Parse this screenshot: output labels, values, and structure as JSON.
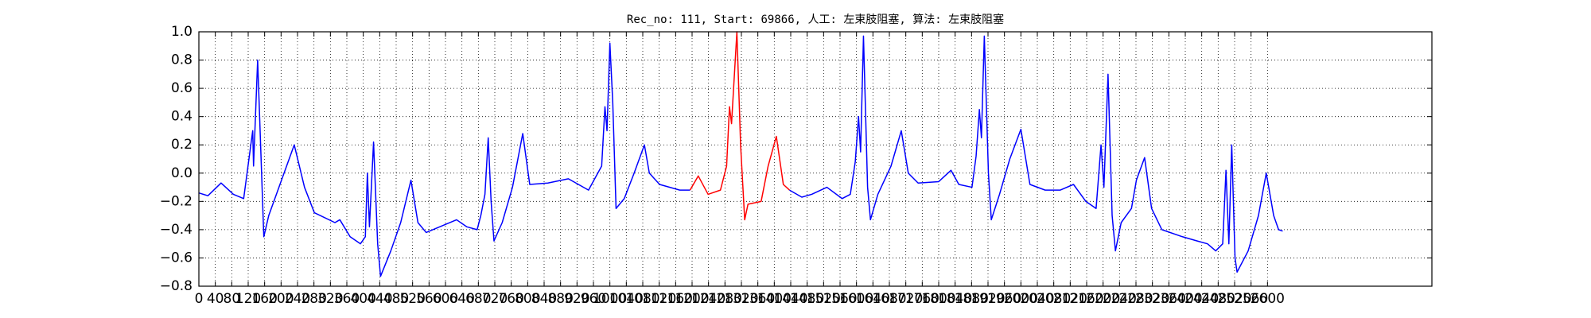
{
  "chart_data": {
    "type": "line",
    "title": "Rec_no: 111, Start: 69866, 人工: 左束肢阻塞, 算法: 左束肢阻塞",
    "xlim": [
      0,
      3000
    ],
    "xticks": [
      0,
      40,
      80,
      120,
      160,
      200,
      240,
      280,
      320,
      360,
      400,
      440,
      480,
      520,
      560,
      600,
      640,
      680,
      720,
      760,
      800,
      840,
      880,
      920,
      960,
      1000,
      1040,
      1080,
      1120,
      1160,
      1200,
      1240,
      1280,
      1320,
      1360,
      1400,
      1440,
      1480,
      1520,
      1560,
      1600,
      1640,
      1680,
      1720,
      1760,
      1800,
      1840,
      1880,
      1920,
      1960,
      2000,
      2040,
      2080,
      2120,
      2160,
      2200,
      2240,
      2280,
      2320,
      2360,
      2400,
      2440,
      2480,
      2520,
      2560,
      2600
    ],
    "ylim": [
      -0.8,
      1.0
    ],
    "yticks": [
      {
        "value": -0.8,
        "label": "−0.8"
      },
      {
        "value": -0.6,
        "label": "−0.6"
      },
      {
        "value": -0.4,
        "label": "−0.4"
      },
      {
        "value": -0.2,
        "label": "−0.2"
      },
      {
        "value": 0,
        "label": "0.0"
      },
      0.2,
      0.4,
      0.6,
      0.8,
      {
        "value": 1,
        "label": "1.0"
      }
    ],
    "grid": true,
    "series": [
      {
        "color": "#0000ff",
        "x": [
          0,
          22,
          54,
          84,
          109,
          131,
          133,
          143,
          158,
          170,
          232,
          257,
          281,
          331,
          343,
          368,
          393,
          405,
          410,
          415,
          425,
          435,
          442,
          467,
          491,
          516,
          533,
          553,
          627,
          652,
          677,
          686,
          696,
          704,
          711,
          718,
          738,
          763,
          788,
          805,
          849,
          899,
          948,
          980,
          988,
          993,
          1000,
          1007,
          1015,
          1035,
          1059,
          1084,
          1096,
          1121,
          1170,
          1195
        ],
        "values": [
          -0.14,
          -0.16,
          -0.07,
          -0.15,
          -0.18,
          0.3,
          0.05,
          0.8,
          -0.45,
          -0.3,
          0.2,
          -0.1,
          -0.28,
          -0.35,
          -0.33,
          -0.45,
          -0.5,
          -0.45,
          0.0,
          -0.38,
          0.22,
          -0.5,
          -0.73,
          -0.55,
          -0.35,
          -0.05,
          -0.35,
          -0.42,
          -0.33,
          -0.38,
          -0.4,
          -0.3,
          -0.15,
          0.25,
          -0.2,
          -0.48,
          -0.35,
          -0.1,
          0.28,
          -0.08,
          -0.07,
          -0.04,
          -0.12,
          0.05,
          0.47,
          0.3,
          0.92,
          0.5,
          -0.25,
          -0.18,
          0.0,
          0.2,
          0.0,
          -0.08,
          -0.12,
          -0.12
        ]
      },
      {
        "color": "#ff0000",
        "x": [
          1195,
          1215,
          1239,
          1269,
          1284,
          1291,
          1296,
          1309,
          1318,
          1328,
          1336,
          1368,
          1385,
          1405,
          1422,
          1437
        ],
        "values": [
          -0.12,
          -0.02,
          -0.15,
          -0.12,
          0.05,
          0.47,
          0.35,
          1.0,
          0.2,
          -0.33,
          -0.22,
          -0.2,
          0.05,
          0.26,
          -0.08,
          -0.12
        ]
      },
      {
        "color": "#0000ff",
        "x": [
          1437,
          1467,
          1491,
          1528,
          1565,
          1585,
          1597,
          1605,
          1610,
          1617,
          1627,
          1634,
          1652,
          1684,
          1709,
          1726,
          1750,
          1800,
          1830,
          1849,
          1881,
          1891,
          1899,
          1904,
          1911,
          1921,
          1928,
          1948,
          1973,
          2000,
          2022,
          2059,
          2096,
          2128,
          2158,
          2183,
          2195,
          2202,
          2212,
          2222,
          2230,
          2244,
          2269,
          2281,
          2301,
          2318,
          2343,
          2393,
          2429,
          2454,
          2474,
          2491,
          2499,
          2506,
          2513,
          2521,
          2526,
          2553,
          2578,
          2597,
          2615,
          2627,
          2637
        ],
        "values": [
          -0.12,
          -0.17,
          -0.15,
          -0.1,
          -0.18,
          -0.15,
          0.08,
          0.4,
          0.15,
          0.97,
          -0.1,
          -0.33,
          -0.15,
          0.05,
          0.3,
          0.0,
          -0.07,
          -0.06,
          0.02,
          -0.08,
          -0.1,
          0.12,
          0.45,
          0.25,
          0.97,
          0.0,
          -0.33,
          -0.15,
          0.1,
          0.31,
          -0.08,
          -0.12,
          -0.12,
          -0.08,
          -0.2,
          -0.25,
          0.2,
          -0.1,
          0.7,
          -0.3,
          -0.55,
          -0.35,
          -0.25,
          -0.05,
          0.11,
          -0.25,
          -0.4,
          -0.45,
          -0.48,
          -0.5,
          -0.55,
          -0.5,
          0.02,
          -0.5,
          0.2,
          -0.6,
          -0.7,
          -0.55,
          -0.3,
          0.0,
          -0.3,
          -0.4,
          -0.41
        ]
      }
    ]
  }
}
